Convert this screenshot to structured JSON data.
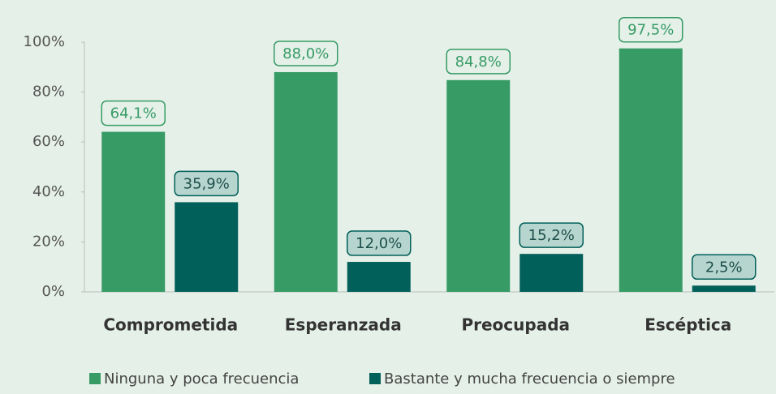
{
  "chart_data": {
    "type": "bar",
    "categories": [
      "Comprometida",
      "Esperanzada",
      "Preocupada",
      "Escéptica"
    ],
    "series": [
      {
        "name": "Ninguna y poca frecuencia",
        "color": "#379b66",
        "values": [
          64.1,
          88.0,
          84.8,
          97.5
        ],
        "value_labels": [
          "64,1%",
          "88,0%",
          "84,8%",
          "97,5%"
        ]
      },
      {
        "name": "Bastante y mucha frecuencia o siempre",
        "color": "#02605a",
        "values": [
          35.9,
          12.0,
          15.2,
          2.5
        ],
        "value_labels": [
          "35,9%",
          "12,0%",
          "15,2%",
          "2,5%"
        ]
      }
    ],
    "ylim": [
      0,
      100
    ],
    "yticks": [
      {
        "value": 0,
        "label": "0%"
      },
      {
        "value": 20,
        "label": "20%"
      },
      {
        "value": 40,
        "label": "40%"
      },
      {
        "value": 60,
        "label": "60%"
      },
      {
        "value": 80,
        "label": "80%"
      },
      {
        "value": 100,
        "label": "100%"
      }
    ],
    "legend": "bottom"
  }
}
